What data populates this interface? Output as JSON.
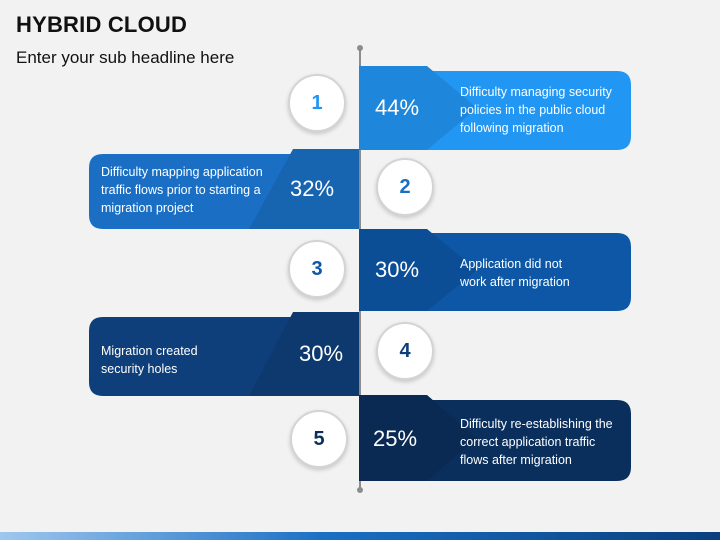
{
  "header": {
    "title": "HYBRID CLOUD",
    "subtitle": "Enter your sub headline here"
  },
  "colors": {
    "tier1": "#2196f3",
    "tier2": "#1a6fc4",
    "tier3": "#0d57a6",
    "tier4": "#0e3f7a",
    "tier5": "#0b2f5c"
  },
  "items": [
    {
      "number": "1",
      "percent": "44%",
      "text": "Difficulty managing security\npolicies in the public cloud\nfollowing migration",
      "side": "right"
    },
    {
      "number": "2",
      "percent": "32%",
      "text": "Difficulty mapping application\ntraffic flows prior to starting a\nmigration project",
      "side": "left"
    },
    {
      "number": "3",
      "percent": "30%",
      "text": "Application did not\nwork after migration",
      "side": "right"
    },
    {
      "number": "4",
      "percent": "30%",
      "text": "Migration created\nsecurity holes",
      "side": "left"
    },
    {
      "number": "5",
      "percent": "25%",
      "text": "Difficulty re-establishing the\ncorrect application traffic\nflows after migration",
      "side": "right"
    }
  ]
}
